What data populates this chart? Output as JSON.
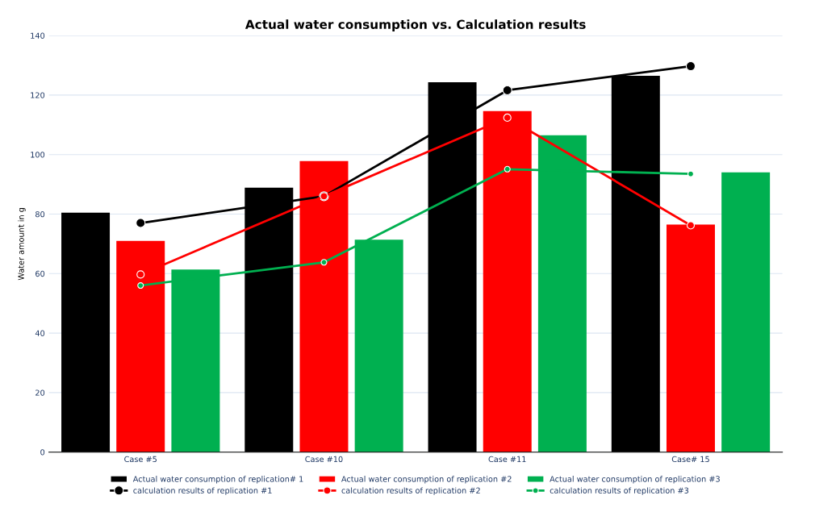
{
  "chart_data": {
    "type": "bar",
    "title": "Actual water consumption vs. Calculation results",
    "ylabel": "Water amount in g",
    "categories": [
      "Case #5",
      "Case #10",
      "Case #11",
      "Case# 15"
    ],
    "series": [
      {
        "name": "Actual water consumption of replication# 1",
        "color": "#000000",
        "values": [
          80.5,
          88.9,
          124.3,
          126.5
        ]
      },
      {
        "name": "Actual water consumption of replication #2",
        "color": "#ff0000",
        "values": [
          71,
          97.8,
          114.6,
          76.5
        ]
      },
      {
        "name": "Actual water consumption of replication #3",
        "color": "#00b050",
        "values": [
          61.4,
          71.4,
          106.5,
          94
        ]
      },
      {
        "name": "calculation results of replication #1",
        "type": "line",
        "color": "#000000",
        "values": [
          77,
          86,
          121.6,
          129.7
        ]
      },
      {
        "name": "calculation results of replication #2",
        "type": "line",
        "color": "#ff0000",
        "values": [
          59.7,
          86,
          112.4,
          76.2
        ]
      },
      {
        "name": "calculation results of replication #3",
        "type": "line",
        "color": "#00b050",
        "values": [
          56,
          63.8,
          95.1,
          93.5
        ]
      }
    ],
    "ylim": [
      0,
      140
    ],
    "yticks": [
      0,
      20,
      40,
      60,
      80,
      100,
      120,
      140
    ],
    "grid": "y",
    "legend": "bottom",
    "marker": "circle"
  }
}
